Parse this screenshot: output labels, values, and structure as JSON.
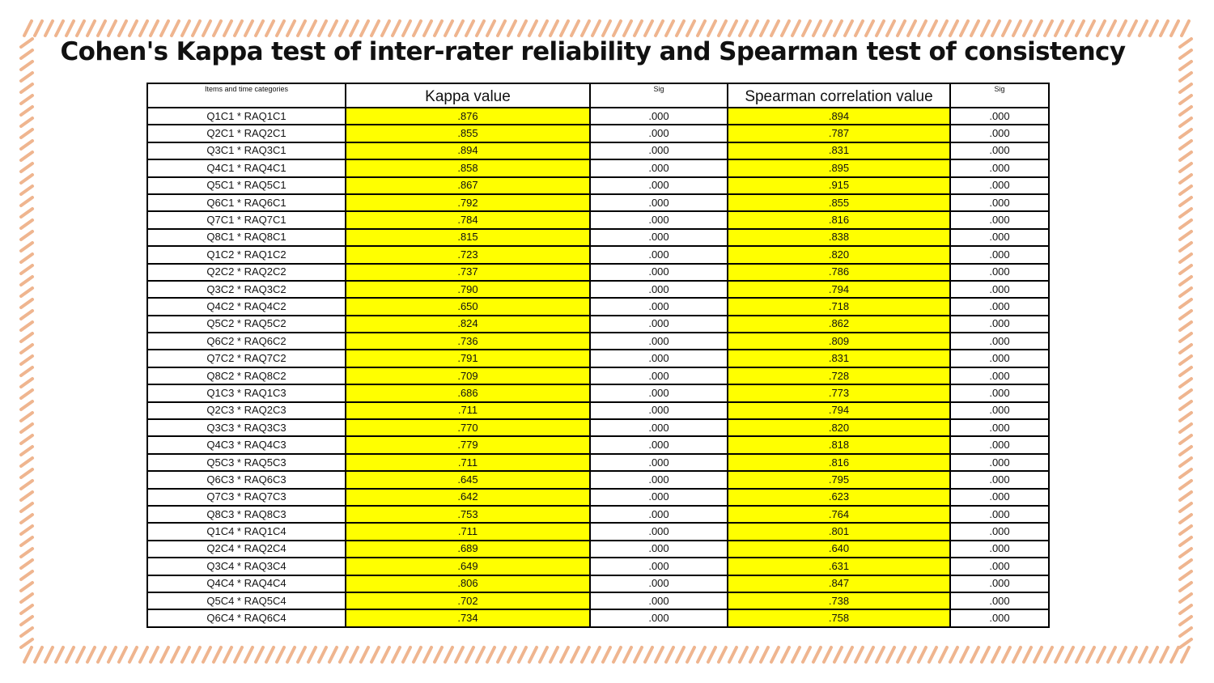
{
  "title": "Cohen's Kappa test of inter-rater reliability and Spearman test of consistency",
  "colors": {
    "highlight": "#ffff00",
    "border_stroke": "#efb58f"
  },
  "table": {
    "headers": [
      "Items and time categories",
      "Kappa value",
      "Sig",
      "Spearman correlation value",
      "Sig"
    ],
    "rows": [
      [
        "Q1C1 * RAQ1C1",
        ".876",
        ".000",
        ".894",
        ".000"
      ],
      [
        "Q2C1 * RAQ2C1",
        ".855",
        ".000",
        ".787",
        ".000"
      ],
      [
        "Q3C1 * RAQ3C1",
        ".894",
        ".000",
        ".831",
        ".000"
      ],
      [
        "Q4C1 * RAQ4C1",
        ".858",
        ".000",
        ".895",
        ".000"
      ],
      [
        "Q5C1 * RAQ5C1",
        ".867",
        ".000",
        ".915",
        ".000"
      ],
      [
        "Q6C1 * RAQ6C1",
        ".792",
        ".000",
        ".855",
        ".000"
      ],
      [
        "Q7C1 * RAQ7C1",
        ".784",
        ".000",
        ".816",
        ".000"
      ],
      [
        "Q8C1 * RAQ8C1",
        ".815",
        ".000",
        ".838",
        ".000"
      ],
      [
        "Q1C2 * RAQ1C2",
        ".723",
        ".000",
        ".820",
        ".000"
      ],
      [
        "Q2C2 * RAQ2C2",
        ".737",
        ".000",
        ".786",
        ".000"
      ],
      [
        "Q3C2 * RAQ3C2",
        ".790",
        ".000",
        ".794",
        ".000"
      ],
      [
        "Q4C2 * RAQ4C2",
        ".650",
        ".000",
        ".718",
        ".000"
      ],
      [
        "Q5C2 * RAQ5C2",
        ".824",
        ".000",
        ".862",
        ".000"
      ],
      [
        "Q6C2 * RAQ6C2",
        ".736",
        ".000",
        ".809",
        ".000"
      ],
      [
        "Q7C2 * RAQ7C2",
        ".791",
        ".000",
        ".831",
        ".000"
      ],
      [
        "Q8C2 * RAQ8C2",
        ".709",
        ".000",
        ".728",
        ".000"
      ],
      [
        "Q1C3 * RAQ1C3",
        ".686",
        ".000",
        ".773",
        ".000"
      ],
      [
        "Q2C3 * RAQ2C3",
        ".711",
        ".000",
        ".794",
        ".000"
      ],
      [
        "Q3C3 * RAQ3C3",
        ".770",
        ".000",
        ".820",
        ".000"
      ],
      [
        "Q4C3 * RAQ4C3",
        ".779",
        ".000",
        ".818",
        ".000"
      ],
      [
        "Q5C3 * RAQ5C3",
        ".711",
        ".000",
        ".816",
        ".000"
      ],
      [
        "Q6C3 * RAQ6C3",
        ".645",
        ".000",
        ".795",
        ".000"
      ],
      [
        "Q7C3 * RAQ7C3",
        ".642",
        ".000",
        ".623",
        ".000"
      ],
      [
        "Q8C3 * RAQ8C3",
        ".753",
        ".000",
        ".764",
        ".000"
      ],
      [
        "Q1C4 * RAQ1C4",
        ".711",
        ".000",
        ".801",
        ".000"
      ],
      [
        "Q2C4 * RAQ2C4",
        ".689",
        ".000",
        ".640",
        ".000"
      ],
      [
        "Q3C4 * RAQ3C4",
        ".649",
        ".000",
        ".631",
        ".000"
      ],
      [
        "Q4C4 * RAQ4C4",
        ".806",
        ".000",
        ".847",
        ".000"
      ],
      [
        "Q5C4 * RAQ5C4",
        ".702",
        ".000",
        ".738",
        ".000"
      ],
      [
        "Q6C4 * RAQ6C4",
        ".734",
        ".000",
        ".758",
        ".000"
      ]
    ]
  }
}
